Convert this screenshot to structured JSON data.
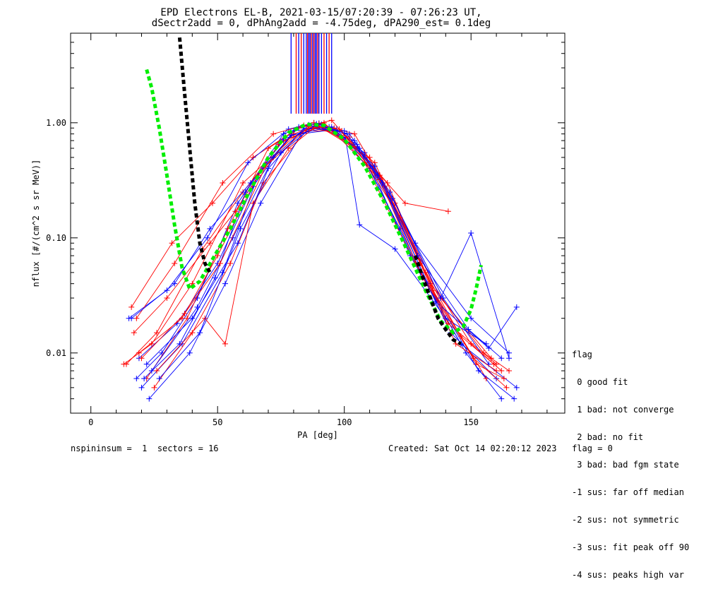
{
  "title_line1": "EPD Electrons EL-B, 2021-03-15/07:20:39 - 07:26:23 UT,",
  "title_line2": "dSectr2add = 0, dPhAng2add = -4.75deg, dPA290_est=   0.1deg",
  "footer_left": "nspininsum =  1  sectors = 16",
  "footer_right": "Created: Sat Oct 14 02:20:12 2023   flag = 0",
  "flag_legend": {
    "header": "flag",
    "items": [
      " 0 good fit",
      " 1 bad: not converge",
      " 2 bad: no fit",
      " 3 bad: bad fgm state",
      "-1 sus: far off median",
      "-2 sus: not symmetric",
      "-3 sus: fit peak off 90",
      "-4 sus: peaks high var"
    ]
  },
  "colors": {
    "red": "#ff0000",
    "blue": "#0000ff",
    "green": "#00ee00",
    "black": "#000000"
  },
  "chart_data": {
    "type": "line",
    "title": "EPD Electrons EL-B, 2021-03-15/07:20:39 - 07:26:23 UT,",
    "xlabel": "PA [deg]",
    "ylabel": "nflux [#/(cm^2 s sr MeV)]",
    "xlim": [
      -8,
      187
    ],
    "ylim": [
      0.003,
      6
    ],
    "yscale": "log",
    "xticks": [
      0,
      50,
      100,
      150
    ],
    "yticks": [
      0.01,
      0.1,
      1.0
    ],
    "ytick_labels": [
      "0.01",
      "0.10",
      "1.00"
    ],
    "model_green": {
      "x": [
        22,
        24,
        27,
        30,
        33,
        36,
        39,
        43,
        48,
        55,
        62,
        70,
        78,
        85,
        92,
        100,
        108,
        116,
        124,
        132,
        138,
        143,
        147,
        150,
        152,
        154
      ],
      "y": [
        2.9,
        2.0,
        0.9,
        0.35,
        0.13,
        0.055,
        0.036,
        0.042,
        0.065,
        0.12,
        0.24,
        0.5,
        0.82,
        0.97,
        0.95,
        0.72,
        0.42,
        0.2,
        0.085,
        0.035,
        0.019,
        0.015,
        0.017,
        0.024,
        0.036,
        0.058
      ]
    },
    "model_black": {
      "x": [
        35,
        37,
        39,
        41,
        43,
        45,
        47
      ],
      "y": [
        5.5,
        1.8,
        0.6,
        0.2,
        0.09,
        0.06,
        0.05
      ],
      "x2": [
        128,
        131,
        134,
        137,
        140,
        143,
        146
      ],
      "y2": [
        0.07,
        0.045,
        0.03,
        0.02,
        0.016,
        0.013,
        0.012
      ]
    },
    "series": [
      {
        "name": "",
        "color": "red",
        "x": [
          13,
          24,
          40,
          60,
          80,
          90,
          110,
          130,
          150,
          162
        ],
        "y": [
          0.008,
          0.012,
          0.04,
          0.3,
          0.75,
          0.93,
          0.5,
          0.06,
          0.012,
          0.007
        ]
      },
      {
        "name": "",
        "color": "blue",
        "x": [
          18,
          28,
          42,
          58,
          76,
          86,
          104,
          122,
          142,
          160
        ],
        "y": [
          0.006,
          0.01,
          0.03,
          0.2,
          0.8,
          0.96,
          0.7,
          0.12,
          0.015,
          0.006
        ]
      },
      {
        "name": "",
        "color": "red",
        "x": [
          16,
          32,
          48,
          64,
          82,
          95,
          114,
          134,
          155,
          165
        ],
        "y": [
          0.025,
          0.09,
          0.2,
          0.5,
          0.9,
          1.05,
          0.35,
          0.04,
          0.01,
          0.007
        ]
      },
      {
        "name": "",
        "color": "blue",
        "x": [
          20,
          36,
          52,
          66,
          82,
          90,
          108,
          126,
          146,
          168
        ],
        "y": [
          0.005,
          0.012,
          0.05,
          0.35,
          0.92,
          0.99,
          0.55,
          0.07,
          0.012,
          0.005
        ]
      },
      {
        "name": "",
        "color": "red",
        "x": [
          22,
          38,
          54,
          70,
          84,
          96,
          116,
          138,
          158
        ],
        "y": [
          0.006,
          0.02,
          0.12,
          0.6,
          0.95,
          0.9,
          0.28,
          0.03,
          0.009
        ]
      },
      {
        "name": "",
        "color": "blue",
        "x": [
          15,
          30,
          46,
          62,
          78,
          88,
          106,
          128,
          150,
          165
        ],
        "y": [
          0.02,
          0.035,
          0.1,
          0.45,
          0.88,
          1.0,
          0.6,
          0.09,
          0.02,
          0.01
        ]
      },
      {
        "name": "",
        "color": "red",
        "x": [
          14,
          26,
          44,
          60,
          76,
          92,
          112,
          132,
          152,
          163
        ],
        "y": [
          0.008,
          0.015,
          0.08,
          0.25,
          0.7,
          0.95,
          0.45,
          0.05,
          0.008,
          0.006
        ]
      },
      {
        "name": "",
        "color": "blue",
        "x": [
          19,
          34,
          50,
          64,
          80,
          94,
          110,
          130,
          148,
          162
        ],
        "y": [
          0.009,
          0.018,
          0.06,
          0.28,
          0.85,
          0.92,
          0.4,
          0.05,
          0.01,
          0.004
        ]
      },
      {
        "name": "",
        "color": "red",
        "x": [
          17,
          30,
          47,
          57,
          74,
          90,
          104,
          120,
          141,
          160
        ],
        "y": [
          0.015,
          0.03,
          0.09,
          0.17,
          0.65,
          0.98,
          0.8,
          0.2,
          0.018,
          0.008
        ]
      },
      {
        "name": "",
        "color": "blue",
        "x": [
          21,
          35,
          49,
          61,
          76,
          91,
          105,
          119,
          139,
          157
        ],
        "y": [
          0.006,
          0.012,
          0.045,
          0.25,
          0.72,
          0.97,
          0.65,
          0.22,
          0.03,
          0.008
        ]
      },
      {
        "name": "",
        "color": "red",
        "x": [
          25,
          40,
          55,
          68,
          85,
          99,
          117,
          135,
          156
        ],
        "y": [
          0.005,
          0.015,
          0.06,
          0.3,
          0.85,
          0.85,
          0.3,
          0.035,
          0.006
        ]
      },
      {
        "name": "",
        "color": "blue",
        "x": [
          23,
          39,
          53,
          67,
          83,
          97,
          113,
          133,
          153,
          167
        ],
        "y": [
          0.004,
          0.01,
          0.04,
          0.2,
          0.8,
          0.88,
          0.35,
          0.04,
          0.007,
          0.004
        ]
      },
      {
        "name": "",
        "color": "red",
        "x": [
          18,
          33,
          52,
          72,
          88,
          104,
          124,
          141
        ],
        "y": [
          0.02,
          0.06,
          0.3,
          0.8,
          1.0,
          0.62,
          0.2,
          0.17
        ]
      },
      {
        "name": "",
        "color": "blue",
        "x": [
          22,
          40,
          58,
          70,
          84,
          100,
          106,
          120,
          140,
          156
        ],
        "y": [
          0.008,
          0.02,
          0.09,
          0.4,
          0.9,
          0.85,
          0.13,
          0.08,
          0.02,
          0.012
        ]
      },
      {
        "name": "",
        "color": "red",
        "x": [
          19,
          36,
          50,
          66,
          80,
          92,
          108,
          128,
          146,
          159
        ],
        "y": [
          0.01,
          0.02,
          0.07,
          0.35,
          0.8,
          1.0,
          0.45,
          0.06,
          0.014,
          0.008
        ]
      },
      {
        "name": "",
        "color": "blue",
        "x": [
          24,
          42,
          56,
          72,
          86,
          102,
          118,
          138,
          150,
          165
        ],
        "y": [
          0.007,
          0.025,
          0.1,
          0.5,
          0.95,
          0.8,
          0.25,
          0.03,
          0.11,
          0.009
        ]
      },
      {
        "name": "",
        "color": "red",
        "x": [
          26,
          45,
          53,
          64,
          78,
          88,
          102,
          122,
          144,
          160
        ],
        "y": [
          0.007,
          0.02,
          0.012,
          0.2,
          0.6,
          0.9,
          0.75,
          0.15,
          0.012,
          0.007
        ]
      },
      {
        "name": "",
        "color": "blue",
        "x": [
          16,
          33,
          47,
          63,
          79,
          95,
          112,
          136,
          157,
          168
        ],
        "y": [
          0.02,
          0.04,
          0.12,
          0.3,
          0.78,
          0.92,
          0.42,
          0.028,
          0.011,
          0.025
        ]
      },
      {
        "name": "",
        "color": "red",
        "x": [
          20,
          37,
          51,
          69,
          86,
          98,
          114,
          131,
          151,
          164
        ],
        "y": [
          0.009,
          0.022,
          0.06,
          0.42,
          0.92,
          0.88,
          0.32,
          0.045,
          0.009,
          0.005
        ]
      },
      {
        "name": "",
        "color": "blue",
        "x": [
          27,
          43,
          59,
          75,
          89,
          101,
          115,
          129,
          149,
          162
        ],
        "y": [
          0.006,
          0.015,
          0.12,
          0.55,
          0.98,
          0.8,
          0.3,
          0.07,
          0.016,
          0.009
        ]
      }
    ],
    "vertical_lines": {
      "color_pattern": [
        "blue",
        "red",
        "blue",
        "red",
        "blue",
        "blue",
        "red",
        "blue"
      ],
      "x": [
        79,
        81,
        82,
        83,
        84,
        85,
        85.5,
        86,
        86.5,
        87,
        87.5,
        88,
        88.5,
        89,
        89.5,
        90,
        91,
        92,
        93,
        94,
        95
      ]
    }
  }
}
